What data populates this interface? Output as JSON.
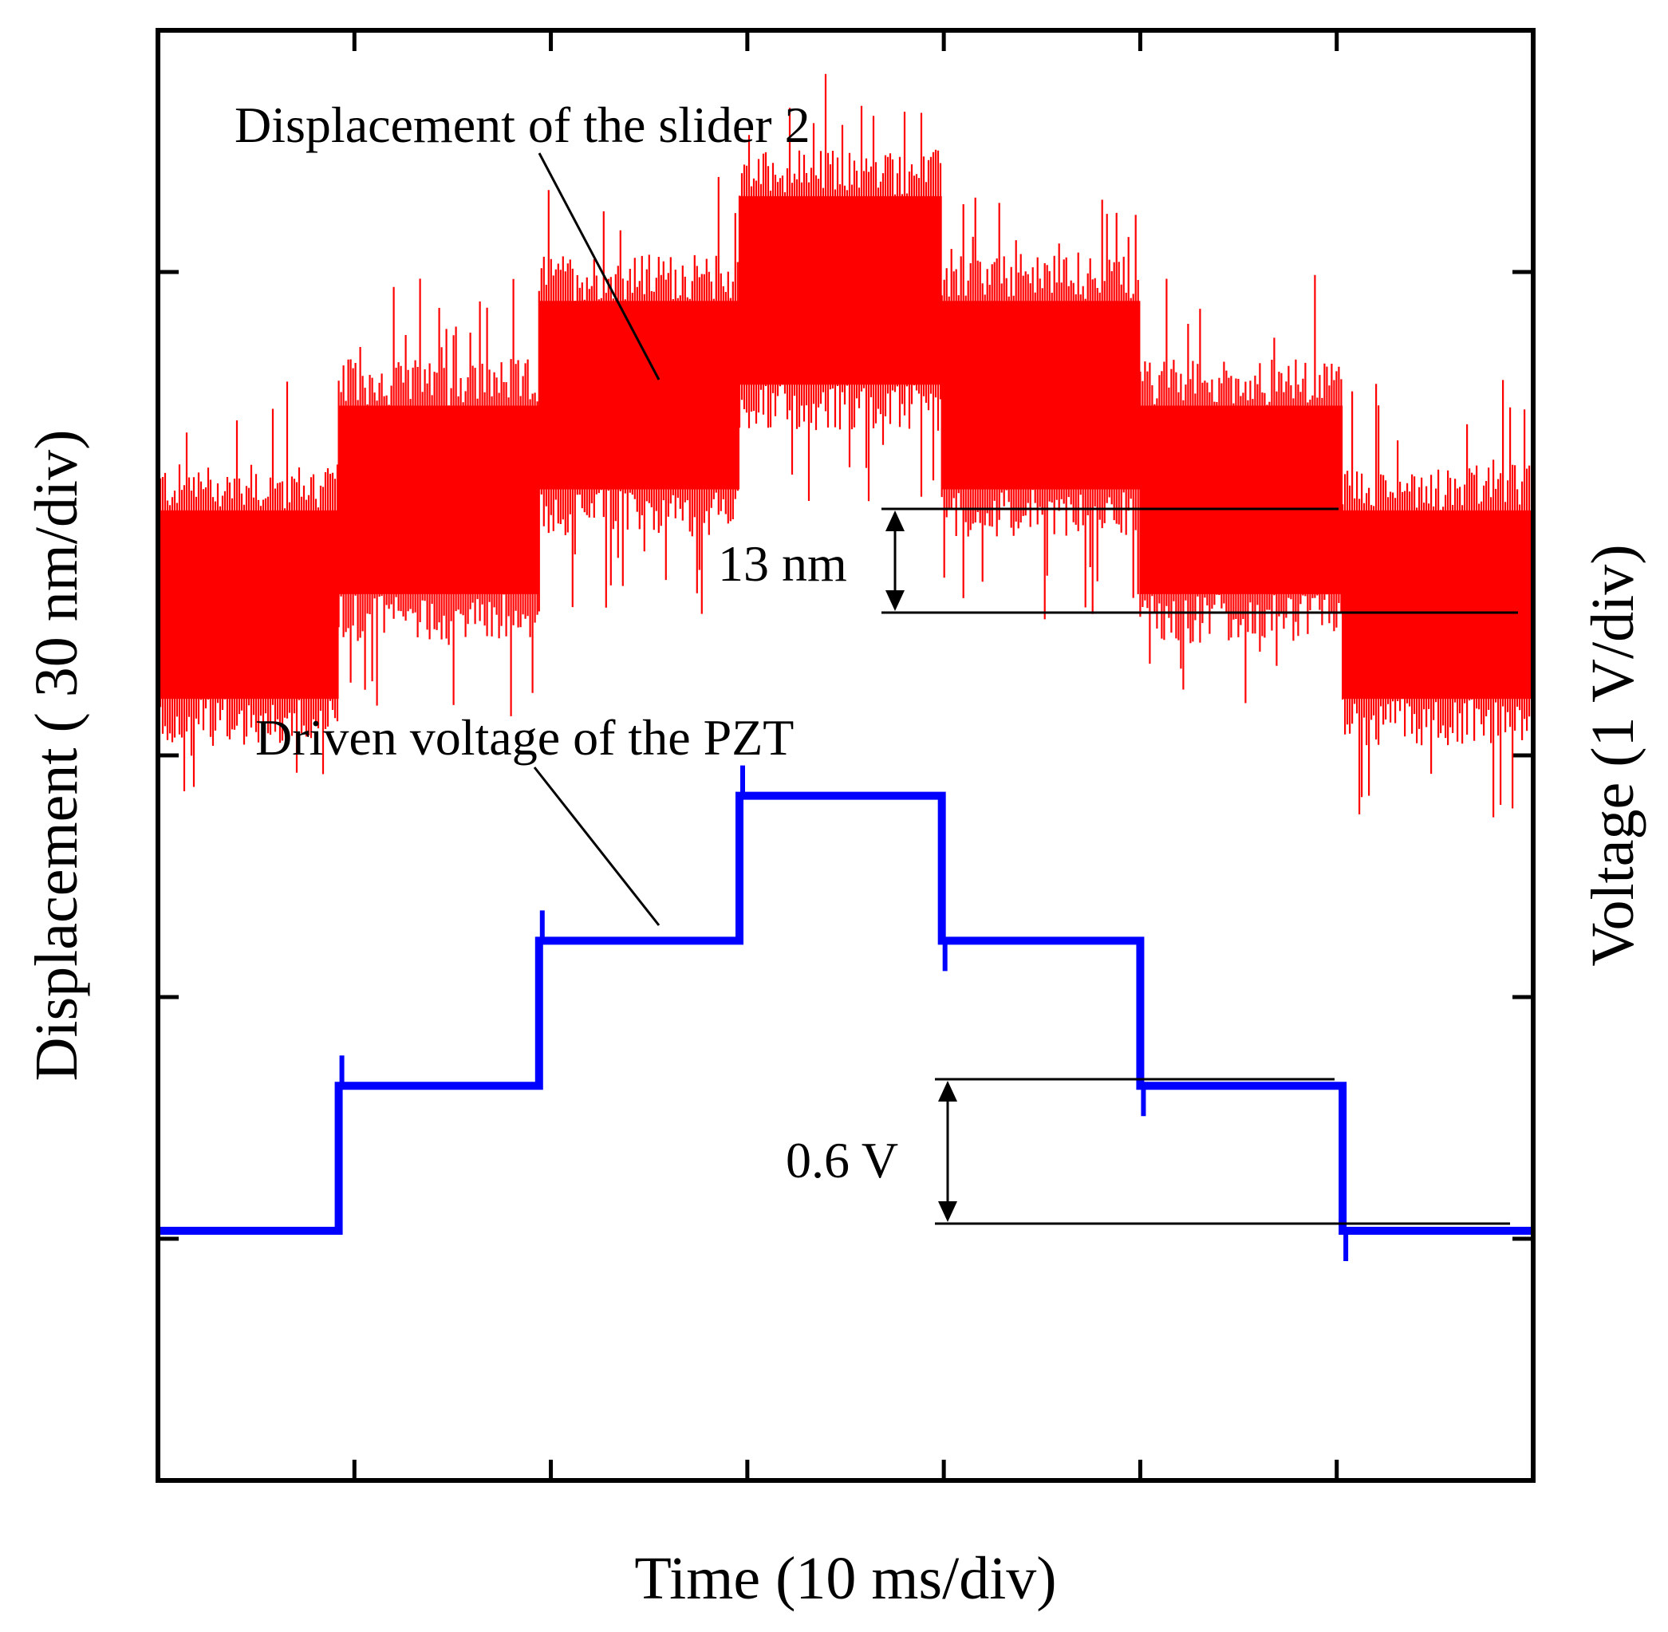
{
  "chart_data": {
    "type": "line",
    "xlabel": "Time (10 ms/div)",
    "ylabel_left": "Displacement ( 30 nm/div)",
    "ylabel_right": "Voltage (1 V/div)",
    "x_divisions": 7,
    "y_divisions": 6,
    "xlim": [
      0,
      70
    ],
    "x_units": "ms",
    "grid": false,
    "legend": "none",
    "series": [
      {
        "color": "#ff0000",
        "units": "nm",
        "noise_amplitude_nm": 13,
        "steps": [
          {
            "x_start": 0,
            "x_end": 9.2,
            "y_center": 97
          },
          {
            "x_start": 9.2,
            "x_end": 19.4,
            "y_center": 110
          },
          {
            "x_start": 19.4,
            "x_end": 29.6,
            "y_center": 123
          },
          {
            "x_start": 29.6,
            "x_end": 39.9,
            "y_center": 136
          },
          {
            "x_start": 39.9,
            "x_end": 50.0,
            "y_center": 123
          },
          {
            "x_start": 50.0,
            "x_end": 60.3,
            "y_center": 110
          },
          {
            "x_start": 60.3,
            "x_end": 70,
            "y_center": 97
          }
        ]
      },
      {
        "color": "#0000ff",
        "units": "V",
        "steps": [
          {
            "x_start": 0,
            "x_end": 9.2,
            "y": 1.0
          },
          {
            "x_start": 9.2,
            "x_end": 19.4,
            "y": 1.6
          },
          {
            "x_start": 19.4,
            "x_end": 29.6,
            "y": 2.2
          },
          {
            "x_start": 29.6,
            "x_end": 39.9,
            "y": 2.8
          },
          {
            "x_start": 39.9,
            "x_end": 50.0,
            "y": 2.2
          },
          {
            "x_start": 50.0,
            "x_end": 60.3,
            "y": 1.6
          },
          {
            "x_start": 60.3,
            "x_end": 70,
            "y": 1.0
          }
        ]
      }
    ],
    "annotations": [
      {
        "id": "disp",
        "text": "Displacement of the slider 2"
      },
      {
        "id": "volt",
        "text": "Driven voltage of the PZT"
      },
      {
        "id": "nm",
        "text": "13 nm"
      },
      {
        "id": "v",
        "text": "0.6 V"
      }
    ]
  }
}
